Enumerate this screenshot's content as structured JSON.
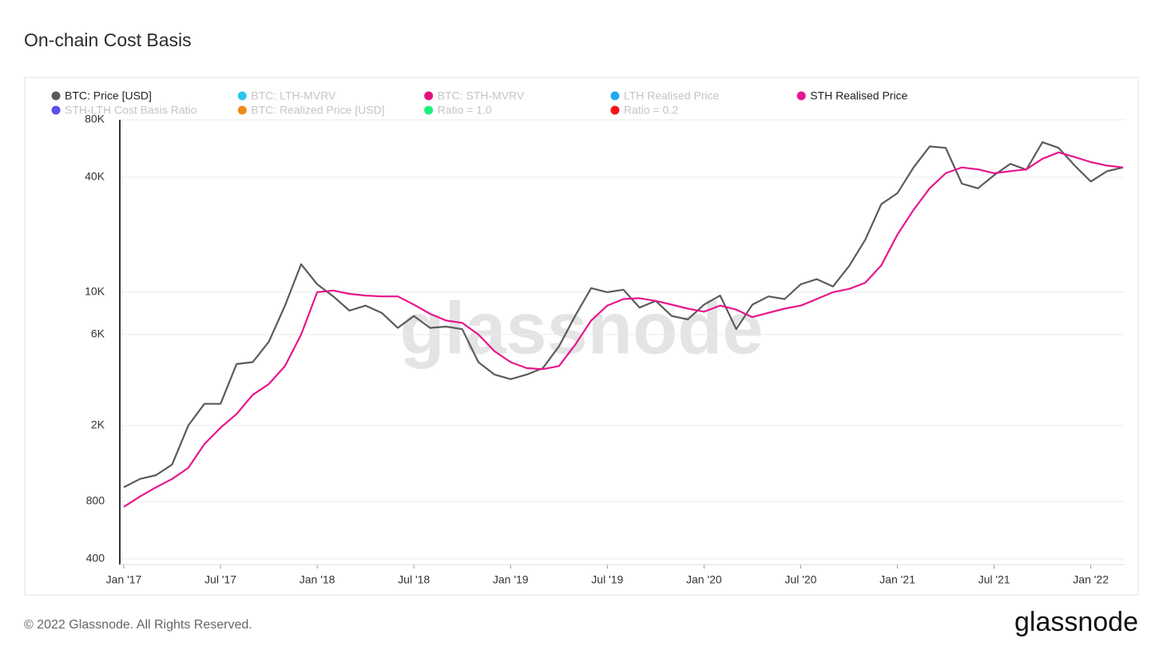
{
  "chart_data": {
    "type": "line",
    "title": "On-chain Cost Basis",
    "watermark": "glassnode",
    "footer": "© 2022 Glassnode. All Rights Reserved.",
    "logo": "glassnode",
    "log_scale": true,
    "grid": true,
    "legend": [
      {
        "name": "BTC: Price [USD]",
        "color": "#5b5b5b",
        "visible": true
      },
      {
        "name": "BTC: LTH-MVRV",
        "color": "#2ec5ef",
        "visible": false
      },
      {
        "name": "BTC: STH-MVRV",
        "color": "#e0127a",
        "visible": false
      },
      {
        "name": "LTH Realised Price",
        "color": "#22aaf0",
        "visible": false
      },
      {
        "name": "STH Realised Price",
        "color": "#e6168c",
        "visible": true
      },
      {
        "name": "STH-LTH Cost Basis Ratio",
        "color": "#5a4ff0",
        "visible": false
      },
      {
        "name": "BTC: Realized Price [USD]",
        "color": "#f28a17",
        "visible": false
      },
      {
        "name": "Ratio = 1.0",
        "color": "#1ef07a",
        "visible": false
      },
      {
        "name": "Ratio = 0.2",
        "color": "#f01414",
        "visible": false
      }
    ],
    "x": [
      "2017-01",
      "2017-02",
      "2017-03",
      "2017-04",
      "2017-05",
      "2017-06",
      "2017-07",
      "2017-08",
      "2017-09",
      "2017-10",
      "2017-11",
      "2017-12",
      "2018-01",
      "2018-02",
      "2018-03",
      "2018-04",
      "2018-05",
      "2018-06",
      "2018-07",
      "2018-08",
      "2018-09",
      "2018-10",
      "2018-11",
      "2018-12",
      "2019-01",
      "2019-02",
      "2019-03",
      "2019-04",
      "2019-05",
      "2019-06",
      "2019-07",
      "2019-08",
      "2019-09",
      "2019-10",
      "2019-11",
      "2019-12",
      "2020-01",
      "2020-02",
      "2020-03",
      "2020-04",
      "2020-05",
      "2020-06",
      "2020-07",
      "2020-08",
      "2020-09",
      "2020-10",
      "2020-11",
      "2020-12",
      "2021-01",
      "2021-02",
      "2021-03",
      "2021-04",
      "2021-05",
      "2021-06",
      "2021-07",
      "2021-08",
      "2021-09",
      "2021-10",
      "2021-11",
      "2021-12",
      "2022-01",
      "2022-02",
      "2022-03"
    ],
    "series": [
      {
        "name": "BTC: Price [USD]",
        "color": "#5b5b5b",
        "values": [
          950,
          1050,
          1100,
          1250,
          2000,
          2600,
          2600,
          4200,
          4300,
          5500,
          8500,
          14000,
          11000,
          9500,
          8000,
          8500,
          7800,
          6500,
          7500,
          6500,
          6600,
          6400,
          4300,
          3700,
          3500,
          3700,
          4000,
          5200,
          7500,
          10500,
          10000,
          10300,
          8300,
          9000,
          7500,
          7200,
          8600,
          9600,
          6400,
          8600,
          9500,
          9200,
          11000,
          11700,
          10700,
          13700,
          18800,
          28900,
          33000,
          45000,
          58000,
          57000,
          37000,
          35000,
          41000,
          47000,
          43800,
          61000,
          57000,
          46000,
          38000,
          43000,
          45000
        ]
      },
      {
        "name": "STH Realised Price",
        "color": "#e6168c",
        "values": [
          750,
          850,
          950,
          1050,
          1200,
          1600,
          1950,
          2300,
          2900,
          3300,
          4100,
          6000,
          10000,
          10200,
          9800,
          9600,
          9500,
          9500,
          8600,
          7700,
          7100,
          6900,
          6000,
          4900,
          4300,
          4000,
          3950,
          4100,
          5300,
          7100,
          8500,
          9200,
          9300,
          9000,
          8600,
          8200,
          7900,
          8500,
          8100,
          7400,
          7800,
          8200,
          8500,
          9200,
          10000,
          10400,
          11200,
          13800,
          20000,
          27000,
          35000,
          42000,
          45000,
          44000,
          42000,
          43000,
          44000,
          50000,
          54000,
          51000,
          48000,
          46000,
          45000
        ]
      }
    ],
    "xlim": [
      "2017-01",
      "2022-03"
    ],
    "xticks": [
      {
        "value": "2017-01",
        "label": "Jan '17"
      },
      {
        "value": "2017-07",
        "label": "Jul '17"
      },
      {
        "value": "2018-01",
        "label": "Jan '18"
      },
      {
        "value": "2018-07",
        "label": "Jul '18"
      },
      {
        "value": "2019-01",
        "label": "Jan '19"
      },
      {
        "value": "2019-07",
        "label": "Jul '19"
      },
      {
        "value": "2020-01",
        "label": "Jan '20"
      },
      {
        "value": "2020-07",
        "label": "Jul '20"
      },
      {
        "value": "2021-01",
        "label": "Jan '21"
      },
      {
        "value": "2021-07",
        "label": "Jul '21"
      },
      {
        "value": "2022-01",
        "label": "Jan '22"
      }
    ],
    "ylim": [
      400,
      80000
    ],
    "yticks": [
      400,
      800,
      {
        "value": 2000,
        "label": "2K"
      },
      {
        "value": 6000,
        "label": "6K"
      },
      {
        "value": 10000,
        "label": "10K"
      },
      {
        "value": 40000,
        "label": "40K"
      },
      {
        "value": 80000,
        "label": "80K"
      }
    ]
  }
}
